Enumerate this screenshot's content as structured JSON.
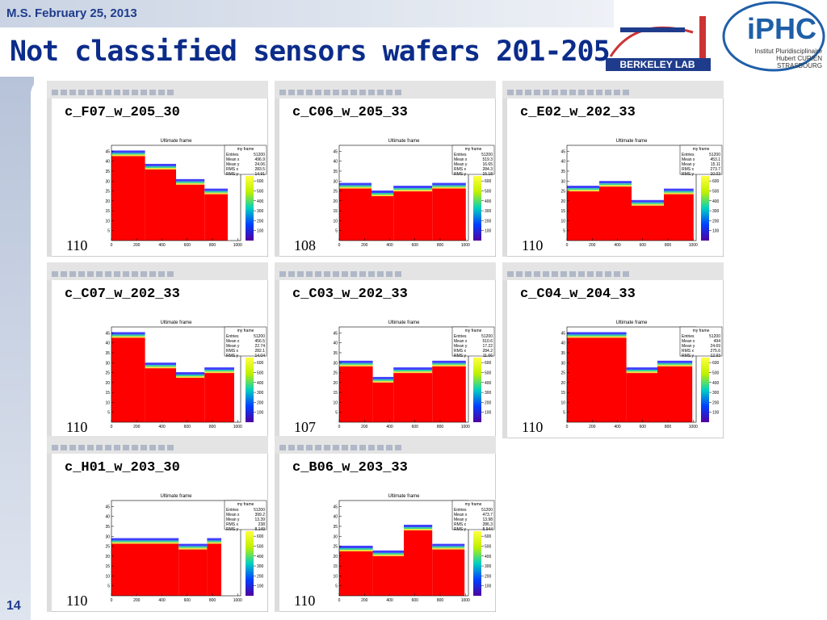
{
  "header": {
    "date": "M.S. February 25, 2013",
    "title": "Not classified sensors wafers 201-205",
    "page": "14"
  },
  "logos": {
    "berkeley": "BERKELEY LAB",
    "iphc": "iPHC",
    "iphc_lines": [
      "Institut Pluridisciplinaire",
      "Hubert CURIEN",
      "STRASBOURG"
    ]
  },
  "plot": {
    "title": "Ultimate frame",
    "stats_title": "my frame",
    "stat_labels": [
      "Entries",
      "Mean x",
      "Mean y",
      "RMS x",
      "RMS y"
    ],
    "xlim": [
      0,
      1024
    ],
    "xticks": [
      0,
      200,
      400,
      600,
      800,
      1000
    ],
    "ylim": [
      0,
      48
    ],
    "yticks": [
      5,
      10,
      15,
      20,
      25,
      30,
      35,
      40,
      45
    ],
    "zlim": [
      0,
      650
    ],
    "zticks": [
      100,
      200,
      300,
      400,
      500,
      600
    ]
  },
  "panels": [
    {
      "name": "c_F07_w_205_30",
      "stats": [
        51200,
        496.9,
        24.06,
        283.5,
        14.91
      ],
      "label": "110"
    },
    {
      "name": "c_C06_w_205_33",
      "stats": [
        51200,
        519.3,
        16.65,
        284.3,
        15.18
      ],
      "label": "108"
    },
    {
      "name": "c_E02_w_202_33",
      "stats": [
        51200,
        453.1,
        15.11,
        273.7,
        10.03
      ],
      "label": "110"
    },
    {
      "name": "c_C07_w_202_33",
      "stats": [
        51200,
        456.5,
        22.74,
        282.1,
        14.04
      ],
      "label": "110"
    },
    {
      "name": "c_C03_w_202_33",
      "stats": [
        51200,
        510.6,
        17.22,
        284.2,
        11.66
      ],
      "label": "107"
    },
    {
      "name": "c_C04_w_204_33",
      "stats": [
        51200,
        494,
        24.69,
        275.6,
        12.93
      ],
      "label": "110"
    },
    {
      "name": "c_H01_w_203_30",
      "stats": [
        51200,
        399.2,
        13.39,
        238,
        8.149
      ],
      "label": "110"
    },
    {
      "name": "c_B06_w_203_33",
      "stats": [
        51200,
        473.7,
        13.98,
        286.3,
        8.944
      ],
      "label": "110"
    }
  ]
}
